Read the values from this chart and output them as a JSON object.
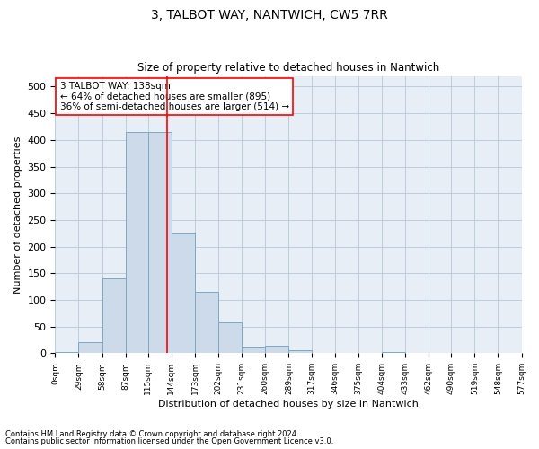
{
  "title1": "3, TALBOT WAY, NANTWICH, CW5 7RR",
  "title2": "Size of property relative to detached houses in Nantwich",
  "xlabel": "Distribution of detached houses by size in Nantwich",
  "ylabel": "Number of detached properties",
  "bar_color": "#ccdaea",
  "bar_edge_color": "#7aaac8",
  "vline_x": 138,
  "vline_color": "red",
  "annotation_line1": "3 TALBOT WAY: 138sqm",
  "annotation_line2": "← 64% of detached houses are smaller (895)",
  "annotation_line3": "36% of semi-detached houses are larger (514) →",
  "annotation_box_color": "red",
  "bin_edges": [
    0,
    29,
    58,
    87,
    115,
    144,
    173,
    202,
    231,
    260,
    289,
    317,
    346,
    375,
    404,
    433,
    462,
    490,
    519,
    548,
    577
  ],
  "bar_heights": [
    2,
    20,
    140,
    415,
    415,
    225,
    115,
    57,
    13,
    14,
    6,
    1,
    0,
    0,
    3,
    0,
    0,
    0,
    1,
    0
  ],
  "ylim": [
    0,
    520
  ],
  "yticks": [
    0,
    50,
    100,
    150,
    200,
    250,
    300,
    350,
    400,
    450,
    500
  ],
  "footer1": "Contains HM Land Registry data © Crown copyright and database right 2024.",
  "footer2": "Contains public sector information licensed under the Open Government Licence v3.0.",
  "title1_fontsize": 10,
  "title2_fontsize": 8.5,
  "ylabel_fontsize": 8,
  "xlabel_fontsize": 8,
  "ytick_fontsize": 8,
  "xtick_fontsize": 6.5,
  "annotation_fontsize": 7.5,
  "footer_fontsize": 6
}
